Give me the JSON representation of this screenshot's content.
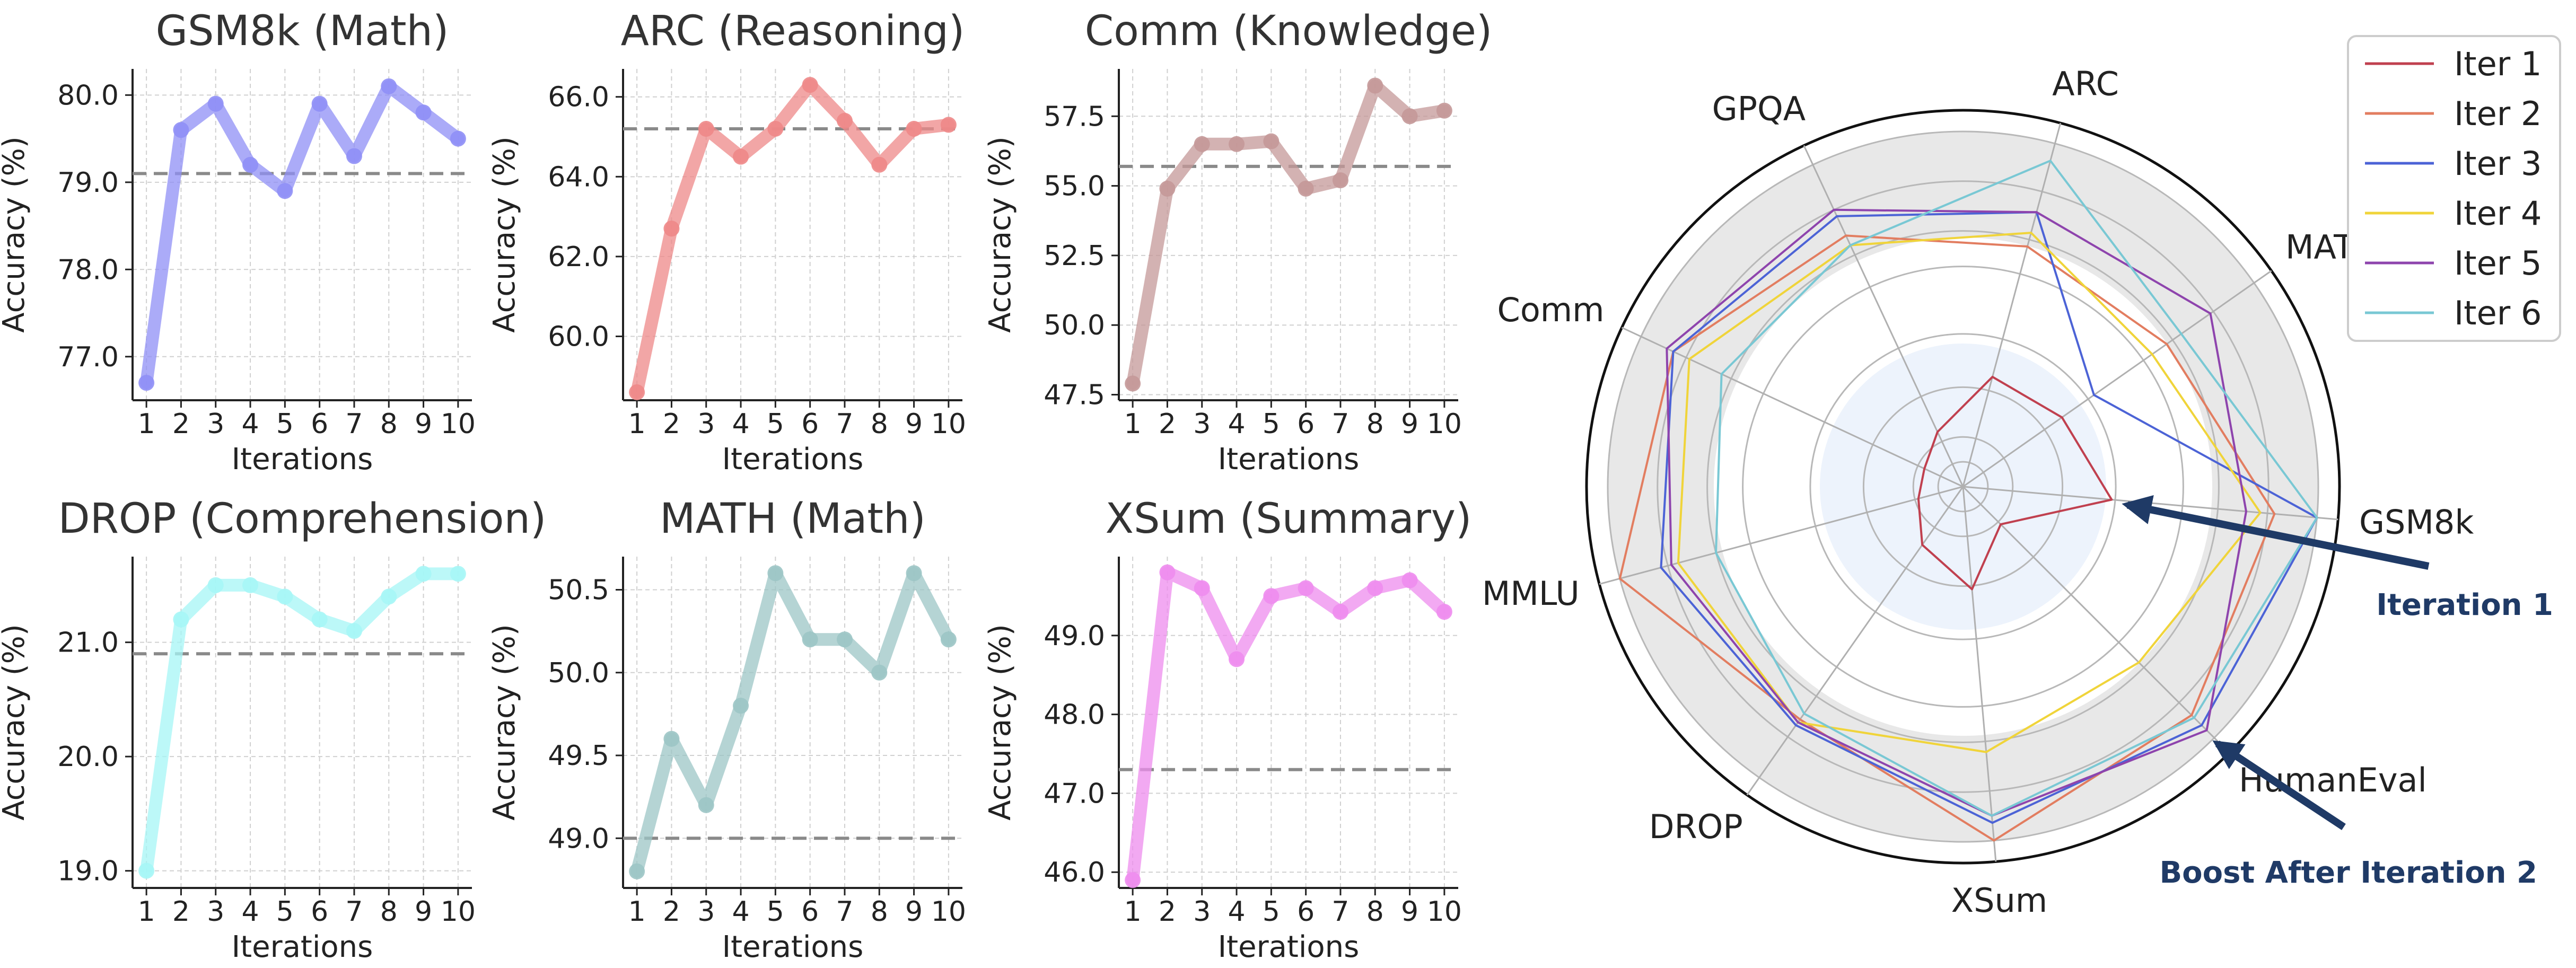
{
  "chart_data": {
    "line_charts": [
      {
        "type": "line",
        "title": "GSM8k (Math)",
        "xlabel": "Iterations",
        "ylabel": "Accuracy (%)",
        "color": "#8f8ff6",
        "x": [
          1,
          2,
          3,
          4,
          5,
          6,
          7,
          8,
          9,
          10
        ],
        "values": [
          76.7,
          79.6,
          79.9,
          79.2,
          78.9,
          79.9,
          79.3,
          80.1,
          79.8,
          79.5
        ],
        "baseline": 79.1,
        "ylim": [
          76.5,
          80.3
        ],
        "yticks": [
          77.0,
          78.0,
          79.0,
          80.0
        ],
        "ytick_labels": [
          "77.0",
          "78.0",
          "79.0",
          "80.0"
        ],
        "grid": true
      },
      {
        "type": "line",
        "title": "ARC (Reasoning)",
        "xlabel": "Iterations",
        "ylabel": "Accuracy (%)",
        "color": "#ee8888",
        "x": [
          1,
          2,
          3,
          4,
          5,
          6,
          7,
          8,
          9,
          10
        ],
        "values": [
          58.6,
          62.7,
          65.2,
          64.5,
          65.2,
          66.3,
          65.4,
          64.3,
          65.2,
          65.3
        ],
        "baseline": 65.2,
        "ylim": [
          58.4,
          66.7
        ],
        "yticks": [
          60.0,
          62.0,
          64.0,
          66.0
        ],
        "ytick_labels": [
          "60.0",
          "62.0",
          "64.0",
          "66.0"
        ],
        "grid": true
      },
      {
        "type": "line",
        "title": "Comm (Knowledge)",
        "xlabel": "Iterations",
        "ylabel": "Accuracy (%)",
        "color": "#c49898",
        "x": [
          1,
          2,
          3,
          4,
          5,
          6,
          7,
          8,
          9,
          10
        ],
        "values": [
          47.9,
          54.9,
          56.5,
          56.5,
          56.6,
          54.9,
          55.2,
          58.6,
          57.5,
          57.7
        ],
        "baseline": 55.7,
        "ylim": [
          47.3,
          59.2
        ],
        "yticks": [
          47.5,
          50.0,
          52.5,
          55.0,
          57.5
        ],
        "ytick_labels": [
          "47.5",
          "50.0",
          "52.5",
          "55.0",
          "57.5"
        ],
        "grid": true
      },
      {
        "type": "line",
        "title": "DROP (Comprehension)",
        "xlabel": "Iterations",
        "ylabel": "Accuracy (%)",
        "color": "#a6f6f6",
        "x": [
          1,
          2,
          3,
          4,
          5,
          6,
          7,
          8,
          9,
          10
        ],
        "values": [
          19.0,
          21.2,
          21.5,
          21.5,
          21.4,
          21.2,
          21.1,
          21.4,
          21.6,
          21.6
        ],
        "baseline": 20.9,
        "ylim": [
          18.85,
          21.75
        ],
        "yticks": [
          19.0,
          20.0,
          21.0
        ],
        "ytick_labels": [
          "19.0",
          "20.0",
          "21.0"
        ],
        "grid": true
      },
      {
        "type": "line",
        "title": "MATH (Math)",
        "xlabel": "Iterations",
        "ylabel": "Accuracy (%)",
        "color": "#9cc5c5",
        "x": [
          1,
          2,
          3,
          4,
          5,
          6,
          7,
          8,
          9,
          10
        ],
        "values": [
          48.8,
          49.6,
          49.2,
          49.8,
          50.6,
          50.2,
          50.2,
          50.0,
          50.6,
          50.2
        ],
        "baseline": 49.0,
        "ylim": [
          48.7,
          50.7
        ],
        "yticks": [
          49.0,
          49.5,
          50.0,
          50.5
        ],
        "ytick_labels": [
          "49.0",
          "49.5",
          "50.0",
          "50.5"
        ],
        "grid": true
      },
      {
        "type": "line",
        "title": "XSum (Summary)",
        "xlabel": "Iterations",
        "ylabel": "Accuracy (%)",
        "color": "#ee8cee",
        "x": [
          1,
          2,
          3,
          4,
          5,
          6,
          7,
          8,
          9,
          10
        ],
        "values": [
          45.9,
          49.8,
          49.6,
          48.7,
          49.5,
          49.6,
          49.3,
          49.6,
          49.7,
          49.3
        ],
        "baseline": 47.3,
        "ylim": [
          45.8,
          50.0
        ],
        "yticks": [
          46.0,
          47.0,
          48.0,
          49.0
        ],
        "ytick_labels": [
          "46.0",
          "47.0",
          "48.0",
          "49.0"
        ],
        "grid": true
      }
    ],
    "radar": {
      "type": "radar",
      "axes": [
        "ARC",
        "MATH",
        "GSM8k",
        "HumanEval",
        "XSum",
        "DROP",
        "MMLU",
        "Comm",
        "GPQA"
      ],
      "series": [
        {
          "name": "Iter 1",
          "color": "#c0404f",
          "values": [
            0.32,
            0.34,
            0.42,
            0.15,
            0.29,
            0.2,
            0.13,
            0.12,
            0.17
          ]
        },
        {
          "name": "Iter 2",
          "color": "#e27d60",
          "values": [
            0.7,
            0.7,
            0.88,
            0.91,
            1.0,
            0.8,
            1.0,
            0.9,
            0.78
          ]
        },
        {
          "name": "Iter 3",
          "color": "#4c63d6",
          "values": [
            0.8,
            0.45,
            1.0,
            0.95,
            0.95,
            0.82,
            0.88,
            0.9,
            0.84
          ]
        },
        {
          "name": "Iter 4",
          "color": "#f0d43a",
          "values": [
            0.74,
            0.65,
            0.84,
            0.7,
            0.75,
            0.81,
            0.83,
            0.85,
            0.75
          ]
        },
        {
          "name": "Iter 5",
          "color": "#8e44ad",
          "values": [
            0.8,
            0.85,
            0.8,
            0.97,
            0.93,
            0.81,
            0.85,
            0.92,
            0.86
          ]
        },
        {
          "name": "Iter 6",
          "color": "#79c8d4",
          "values": [
            0.95,
            0.75,
            1.0,
            0.92,
            0.93,
            0.78,
            0.72,
            0.75,
            0.75
          ]
        }
      ],
      "annotations": [
        {
          "text": "Iteration 1",
          "target_axis": "GSM8k",
          "target_value": 0.42
        },
        {
          "text": "Boost After Iteration 2",
          "target_axis": "HumanEval",
          "target_value": 0.96
        }
      ],
      "arrow_color": "#1f3a66"
    }
  }
}
